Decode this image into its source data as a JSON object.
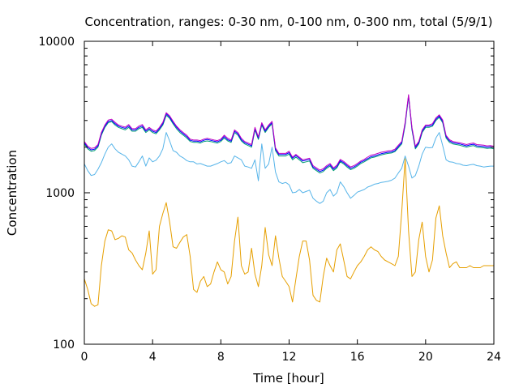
{
  "chart_data": {
    "type": "line",
    "title": "Concentration, ranges: 0-30 nm, 0-100 nm, 0-300 nm, total (5/9/1)",
    "xlabel": "Time [hour]",
    "ylabel": "Concentration",
    "xlim": [
      0,
      24
    ],
    "ylim": [
      100,
      10000
    ],
    "yscale": "log",
    "xticks": [
      0,
      4,
      8,
      12,
      16,
      20,
      24
    ],
    "xtick_labels": [
      "0",
      "4",
      "8",
      "12",
      "16",
      "20",
      "24"
    ],
    "yticks": [
      100,
      1000,
      10000
    ],
    "ytick_labels": [
      "100",
      "1000",
      "10000"
    ],
    "grid": false,
    "x": [
      0,
      0.2,
      0.4,
      0.6,
      0.8,
      1.0,
      1.2,
      1.4,
      1.6,
      1.8,
      2.0,
      2.2,
      2.4,
      2.6,
      2.8,
      3.0,
      3.2,
      3.4,
      3.6,
      3.8,
      4.0,
      4.2,
      4.4,
      4.6,
      4.8,
      5.0,
      5.2,
      5.4,
      5.6,
      5.8,
      6.0,
      6.2,
      6.4,
      6.6,
      6.8,
      7.0,
      7.2,
      7.4,
      7.6,
      7.8,
      8.0,
      8.2,
      8.4,
      8.6,
      8.8,
      9.0,
      9.2,
      9.4,
      9.6,
      9.8,
      10.0,
      10.2,
      10.4,
      10.6,
      10.8,
      11.0,
      11.2,
      11.4,
      11.6,
      11.8,
      12.0,
      12.2,
      12.4,
      12.6,
      12.8,
      13.0,
      13.2,
      13.4,
      13.6,
      13.8,
      14.0,
      14.2,
      14.4,
      14.6,
      14.8,
      15.0,
      15.2,
      15.4,
      15.6,
      15.8,
      16.0,
      16.2,
      16.4,
      16.6,
      16.8,
      17.0,
      17.2,
      17.4,
      17.6,
      17.8,
      18.0,
      18.2,
      18.4,
      18.6,
      18.8,
      19.0,
      19.2,
      19.4,
      19.6,
      19.8,
      20.0,
      20.2,
      20.4,
      20.6,
      20.8,
      21.0,
      21.2,
      21.4,
      21.6,
      21.8,
      22.0,
      22.2,
      22.4,
      22.6,
      22.8,
      23.0,
      23.2,
      23.4,
      23.6,
      23.8,
      24.0
    ],
    "series": [
      {
        "color": "#e69f00",
        "values": [
          270,
          230,
          185,
          178,
          182,
          330,
          480,
          570,
          560,
          490,
          500,
          520,
          510,
          420,
          400,
          360,
          330,
          310,
          400,
          560,
          290,
          310,
          600,
          730,
          860,
          640,
          440,
          430,
          470,
          510,
          530,
          380,
          230,
          220,
          260,
          280,
          240,
          250,
          300,
          350,
          310,
          300,
          250,
          280,
          480,
          690,
          330,
          290,
          300,
          430,
          290,
          240,
          330,
          590,
          390,
          330,
          520,
          370,
          280,
          260,
          240,
          190,
          270,
          380,
          480,
          480,
          360,
          210,
          195,
          190,
          280,
          370,
          330,
          300,
          420,
          460,
          360,
          280,
          270,
          300,
          330,
          350,
          380,
          420,
          440,
          420,
          410,
          380,
          360,
          350,
          340,
          330,
          380,
          750,
          1680,
          560,
          280,
          300,
          490,
          640,
          380,
          300,
          360,
          680,
          820,
          520,
          400,
          320,
          340,
          350,
          320,
          320,
          320,
          330,
          320,
          320,
          320,
          330,
          330,
          330,
          330
        ]
      },
      {
        "color": "#56b4e9",
        "values": [
          1550,
          1400,
          1300,
          1320,
          1430,
          1580,
          1800,
          2000,
          2100,
          1950,
          1850,
          1800,
          1750,
          1650,
          1500,
          1480,
          1600,
          1750,
          1500,
          1700,
          1600,
          1640,
          1750,
          1950,
          2500,
          2200,
          1900,
          1850,
          1750,
          1700,
          1630,
          1600,
          1600,
          1550,
          1560,
          1530,
          1500,
          1500,
          1530,
          1560,
          1600,
          1630,
          1560,
          1580,
          1750,
          1700,
          1650,
          1500,
          1480,
          1450,
          1650,
          1200,
          2100,
          1450,
          1550,
          2000,
          1370,
          1180,
          1150,
          1170,
          1130,
          1000,
          1010,
          1050,
          1000,
          1020,
          1040,
          920,
          880,
          850,
          880,
          1000,
          1050,
          950,
          1000,
          1180,
          1100,
          1000,
          920,
          960,
          1010,
          1030,
          1050,
          1090,
          1110,
          1140,
          1150,
          1170,
          1180,
          1190,
          1210,
          1250,
          1350,
          1450,
          1750,
          1500,
          1250,
          1300,
          1500,
          1800,
          2000,
          1980,
          1990,
          2300,
          2500,
          2050,
          1650,
          1600,
          1590,
          1560,
          1550,
          1520,
          1510,
          1530,
          1540,
          1510,
          1500,
          1480,
          1490,
          1500,
          1500
        ]
      },
      {
        "color": "#009e73",
        "values": [
          2100,
          1950,
          1880,
          1900,
          2000,
          2400,
          2700,
          2900,
          2950,
          2800,
          2700,
          2650,
          2600,
          2700,
          2550,
          2550,
          2650,
          2700,
          2500,
          2600,
          2500,
          2450,
          2600,
          2800,
          3250,
          3100,
          2850,
          2650,
          2500,
          2400,
          2300,
          2180,
          2150,
          2150,
          2130,
          2180,
          2200,
          2180,
          2150,
          2130,
          2180,
          2300,
          2200,
          2150,
          2500,
          2400,
          2200,
          2100,
          2050,
          2000,
          2600,
          2250,
          2800,
          2500,
          2700,
          2850,
          1900,
          1750,
          1750,
          1750,
          1800,
          1650,
          1720,
          1650,
          1580,
          1600,
          1620,
          1450,
          1400,
          1350,
          1380,
          1450,
          1500,
          1400,
          1460,
          1600,
          1550,
          1480,
          1420,
          1450,
          1500,
          1560,
          1600,
          1650,
          1700,
          1720,
          1750,
          1780,
          1800,
          1820,
          1830,
          1870,
          1980,
          2100,
          2800,
          4300,
          2600,
          1950,
          2100,
          2500,
          2700,
          2700,
          2750,
          3000,
          3150,
          2900,
          2300,
          2150,
          2100,
          2080,
          2060,
          2030,
          2000,
          2030,
          2050,
          2000,
          1990,
          1980,
          1960,
          1970,
          1950
        ]
      },
      {
        "color": "#0000ff",
        "values": [
          2140,
          1990,
          1920,
          1940,
          2040,
          2450,
          2750,
          2960,
          3000,
          2860,
          2750,
          2700,
          2660,
          2760,
          2600,
          2600,
          2700,
          2760,
          2550,
          2650,
          2550,
          2500,
          2650,
          2860,
          3320,
          3160,
          2910,
          2710,
          2560,
          2450,
          2350,
          2220,
          2190,
          2190,
          2170,
          2220,
          2250,
          2220,
          2190,
          2170,
          2220,
          2350,
          2240,
          2190,
          2550,
          2450,
          2240,
          2140,
          2090,
          2040,
          2650,
          2300,
          2850,
          2550,
          2750,
          2900,
          1940,
          1790,
          1790,
          1790,
          1840,
          1690,
          1760,
          1690,
          1620,
          1640,
          1660,
          1480,
          1430,
          1380,
          1410,
          1480,
          1530,
          1430,
          1490,
          1630,
          1580,
          1510,
          1450,
          1480,
          1530,
          1590,
          1630,
          1680,
          1730,
          1750,
          1780,
          1810,
          1830,
          1850,
          1860,
          1900,
          2020,
          2140,
          2860,
          4380,
          2650,
          1990,
          2140,
          2550,
          2750,
          2750,
          2800,
          3060,
          3210,
          2960,
          2350,
          2200,
          2140,
          2120,
          2100,
          2070,
          2040,
          2070,
          2090,
          2040,
          2030,
          2020,
          2000,
          2010,
          1990
        ]
      },
      {
        "color": "#c000c0",
        "values": [
          2180,
          2030,
          1960,
          1980,
          2080,
          2500,
          2800,
          3020,
          3060,
          2920,
          2800,
          2750,
          2710,
          2820,
          2650,
          2650,
          2760,
          2820,
          2600,
          2700,
          2600,
          2550,
          2700,
          2920,
          3380,
          3220,
          2970,
          2760,
          2610,
          2500,
          2400,
          2260,
          2230,
          2230,
          2210,
          2260,
          2290,
          2260,
          2230,
          2210,
          2260,
          2400,
          2290,
          2230,
          2600,
          2500,
          2290,
          2180,
          2130,
          2080,
          2700,
          2340,
          2900,
          2600,
          2800,
          2960,
          1980,
          1820,
          1820,
          1820,
          1880,
          1720,
          1790,
          1720,
          1650,
          1670,
          1690,
          1510,
          1460,
          1410,
          1440,
          1510,
          1560,
          1460,
          1520,
          1660,
          1610,
          1540,
          1480,
          1510,
          1560,
          1620,
          1660,
          1720,
          1770,
          1790,
          1820,
          1850,
          1870,
          1890,
          1900,
          1940,
          2060,
          2180,
          2920,
          4440,
          2700,
          2030,
          2180,
          2600,
          2800,
          2800,
          2860,
          3120,
          3270,
          3020,
          2390,
          2240,
          2180,
          2160,
          2140,
          2110,
          2080,
          2110,
          2130,
          2080,
          2070,
          2060,
          2040,
          2050,
          2030
        ]
      }
    ]
  }
}
